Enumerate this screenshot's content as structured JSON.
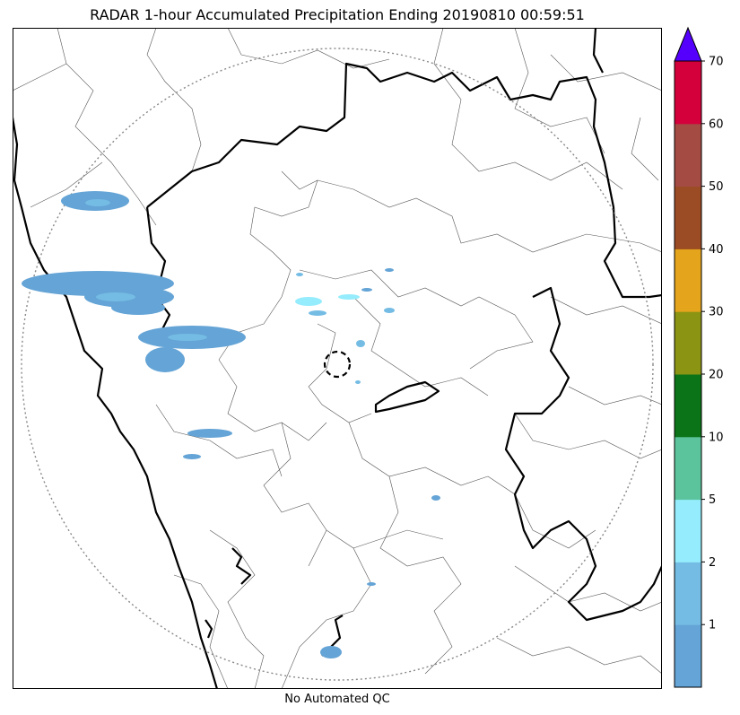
{
  "title": "RADAR 1-hour Accumulated Precipitation Ending 20190810 00:59:51",
  "footer": "No Automated QC",
  "colorbar": {
    "segments": [
      {
        "color": "#64a4d6"
      },
      {
        "color": "#74bce4"
      },
      {
        "color": "#94ecfc"
      },
      {
        "color": "#5cc49c"
      },
      {
        "color": "#0c7418"
      },
      {
        "color": "#8c9414"
      },
      {
        "color": "#e4a41c"
      },
      {
        "color": "#9c4c24"
      },
      {
        "color": "#a44c44"
      },
      {
        "color": "#d4003c"
      }
    ],
    "extend_color": "#5400fc",
    "tick_labels": [
      "1",
      "2",
      "5",
      "10",
      "20",
      "30",
      "40",
      "50",
      "60",
      "70"
    ]
  }
}
